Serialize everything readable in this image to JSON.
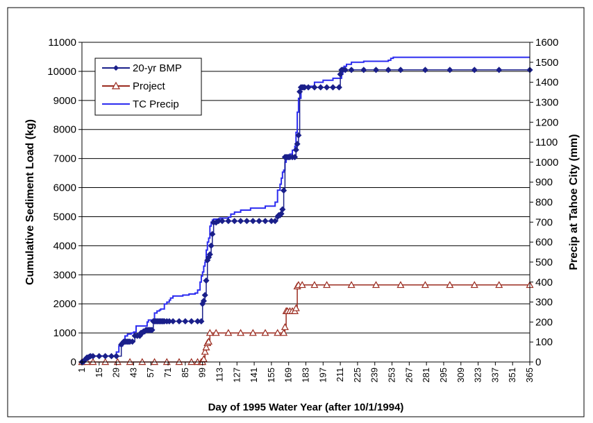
{
  "chart_data": {
    "type": "line",
    "title": "",
    "xlabel": "Day of 1995 Water Year (after 10/1/1994)",
    "ylabel": "Cumulative Sediment Load (kg)",
    "y2label": "Precip at Tahoe City (mm)",
    "xlim": [
      1,
      365
    ],
    "ylim": [
      0,
      11000
    ],
    "y2lim": [
      0,
      1600
    ],
    "x_ticks": [
      1,
      15,
      29,
      43,
      57,
      71,
      85,
      99,
      113,
      127,
      141,
      155,
      169,
      183,
      197,
      211,
      225,
      239,
      253,
      267,
      281,
      295,
      309,
      323,
      337,
      351,
      365
    ],
    "y_ticks": [
      0,
      1000,
      2000,
      3000,
      4000,
      5000,
      6000,
      7000,
      8000,
      9000,
      10000,
      11000
    ],
    "y2_ticks": [
      0,
      100,
      200,
      300,
      400,
      500,
      600,
      700,
      800,
      900,
      1000,
      1100,
      1200,
      1300,
      1400,
      1500,
      1600
    ],
    "grid": "horizontal",
    "legend_position": "top-left",
    "colors": {
      "bmp": "#1a1f8a",
      "project": "#9a2a1e",
      "precip": "#2b2bf0",
      "grid": "#000000",
      "frame": "#000000"
    },
    "series": [
      {
        "name": "20-yr BMP",
        "axis": "left",
        "marker": "diamond",
        "x": [
          1,
          2,
          3,
          4,
          5,
          6,
          7,
          8,
          10,
          15,
          20,
          25,
          29,
          33,
          34,
          35,
          36,
          37,
          38,
          39,
          40,
          42,
          44,
          46,
          48,
          49,
          50,
          51,
          52,
          53,
          54,
          55,
          56,
          57,
          58,
          59,
          60,
          61,
          62,
          63,
          64,
          65,
          66,
          67,
          68,
          70,
          72,
          75,
          80,
          85,
          90,
          95,
          98,
          99,
          100,
          101,
          102,
          103,
          104,
          105,
          106,
          107,
          108,
          110,
          112,
          115,
          120,
          125,
          130,
          135,
          140,
          145,
          150,
          155,
          158,
          160,
          161,
          162,
          163,
          164,
          165,
          166,
          167,
          168,
          169,
          170,
          172,
          174,
          175,
          176,
          177,
          178,
          179,
          180,
          181,
          182,
          185,
          190,
          195,
          200,
          205,
          210,
          211,
          212,
          213,
          215,
          220,
          230,
          240,
          250,
          260,
          280,
          300,
          320,
          340,
          365
        ],
        "values": [
          0,
          0,
          50,
          100,
          150,
          150,
          180,
          200,
          200,
          200,
          200,
          200,
          200,
          600,
          650,
          700,
          700,
          700,
          700,
          700,
          700,
          700,
          900,
          900,
          900,
          1000,
          1000,
          1050,
          1050,
          1100,
          1100,
          1100,
          1100,
          1100,
          1100,
          1400,
          1400,
          1400,
          1400,
          1400,
          1400,
          1400,
          1400,
          1400,
          1400,
          1400,
          1400,
          1400,
          1400,
          1400,
          1400,
          1400,
          1400,
          2000,
          2100,
          2300,
          2800,
          3500,
          3600,
          3700,
          4000,
          4400,
          4800,
          4800,
          4850,
          4850,
          4850,
          4850,
          4850,
          4850,
          4850,
          4850,
          4850,
          4850,
          4850,
          5000,
          5050,
          5050,
          5100,
          5250,
          5900,
          7050,
          7050,
          7050,
          7050,
          7050,
          7050,
          7050,
          7300,
          7500,
          7800,
          9300,
          9450,
          9450,
          9450,
          9450,
          9450,
          9450,
          9450,
          9450,
          9450,
          9450,
          9900,
          10050,
          10050,
          10050,
          10050,
          10050,
          10050,
          10050,
          10050,
          10050,
          10050,
          10050,
          10050,
          10050
        ]
      },
      {
        "name": "Project",
        "axis": "left",
        "marker": "triangle",
        "x": [
          1,
          5,
          10,
          20,
          30,
          40,
          50,
          60,
          70,
          80,
          90,
          95,
          98,
          99,
          100,
          101,
          102,
          103,
          104,
          105,
          110,
          120,
          130,
          140,
          150,
          160,
          165,
          166,
          167,
          168,
          170,
          172,
          174,
          175,
          176,
          177,
          180,
          190,
          200,
          220,
          240,
          260,
          280,
          300,
          320,
          340,
          365
        ],
        "values": [
          0,
          0,
          0,
          0,
          0,
          0,
          0,
          0,
          0,
          0,
          0,
          0,
          0,
          0,
          100,
          350,
          500,
          650,
          700,
          1000,
          1000,
          1000,
          1000,
          1000,
          1000,
          1000,
          1000,
          1200,
          1750,
          1750,
          1750,
          1750,
          1750,
          1850,
          2600,
          2650,
          2650,
          2650,
          2650,
          2650,
          2650,
          2650,
          2650,
          2650,
          2650,
          2650,
          2650
        ]
      },
      {
        "name": "TC Precip",
        "axis": "right",
        "marker": "none",
        "x": [
          1,
          3,
          5,
          6,
          7,
          8,
          12,
          15,
          20,
          25,
          28,
          29,
          31,
          34,
          36,
          38,
          40,
          41,
          43,
          45,
          47,
          50,
          54,
          55,
          58,
          60,
          62,
          64,
          65,
          68,
          70,
          72,
          73,
          75,
          80,
          83,
          85,
          88,
          90,
          92,
          93,
          95,
          97,
          98,
          99,
          100,
          101,
          102,
          103,
          104,
          105,
          106,
          107,
          108,
          110,
          113,
          116,
          119,
          120,
          122,
          125,
          130,
          135,
          138,
          140,
          145,
          150,
          156,
          158,
          160,
          162,
          163,
          164,
          165,
          166,
          167,
          168,
          169,
          170,
          172,
          174,
          175,
          176,
          177,
          179,
          180,
          185,
          188,
          190,
          195,
          197,
          200,
          205,
          210,
          212,
          213,
          214,
          216,
          220,
          230,
          240,
          250,
          252,
          254,
          255,
          270,
          290,
          310,
          330,
          350,
          365
        ],
        "values": [
          0,
          15,
          15,
          25,
          28,
          30,
          30,
          30,
          30,
          30,
          35,
          50,
          80,
          100,
          130,
          140,
          140,
          145,
          150,
          180,
          180,
          180,
          200,
          210,
          210,
          245,
          255,
          260,
          265,
          290,
          300,
          310,
          320,
          330,
          330,
          335,
          335,
          340,
          340,
          340,
          345,
          360,
          400,
          430,
          450,
          480,
          500,
          560,
          600,
          620,
          680,
          700,
          710,
          715,
          715,
          720,
          720,
          720,
          725,
          740,
          750,
          760,
          760,
          770,
          770,
          770,
          780,
          780,
          800,
          860,
          890,
          920,
          950,
          960,
          1000,
          1020,
          1030,
          1030,
          1040,
          1060,
          1080,
          1150,
          1250,
          1320,
          1380,
          1380,
          1380,
          1380,
          1400,
          1400,
          1410,
          1410,
          1420,
          1420,
          1440,
          1460,
          1480,
          1490,
          1500,
          1505,
          1505,
          1510,
          1520,
          1525,
          1525,
          1525,
          1525,
          1525,
          1525,
          1525,
          1525
        ]
      }
    ]
  }
}
